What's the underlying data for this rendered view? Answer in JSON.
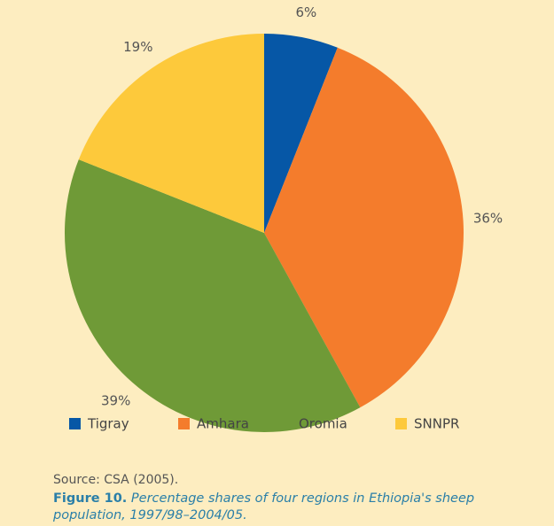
{
  "chart_data": {
    "type": "pie",
    "categories": [
      "Tigray",
      "Amhara",
      "Oromia",
      "SNNPR"
    ],
    "values": [
      6,
      36,
      39,
      19
    ],
    "value_labels": [
      "6%",
      "36%",
      "39%",
      "19%"
    ],
    "colors": [
      "#0657a6",
      "#f47c2c",
      "#6f9a37",
      "#fdc93b"
    ],
    "legend": true
  },
  "source": "Source: CSA (2005).",
  "caption_label": "Figure 10.",
  "caption_text": "Percentage shares of four regions in Ethiopia's sheep population, 1997/98–2004/05."
}
